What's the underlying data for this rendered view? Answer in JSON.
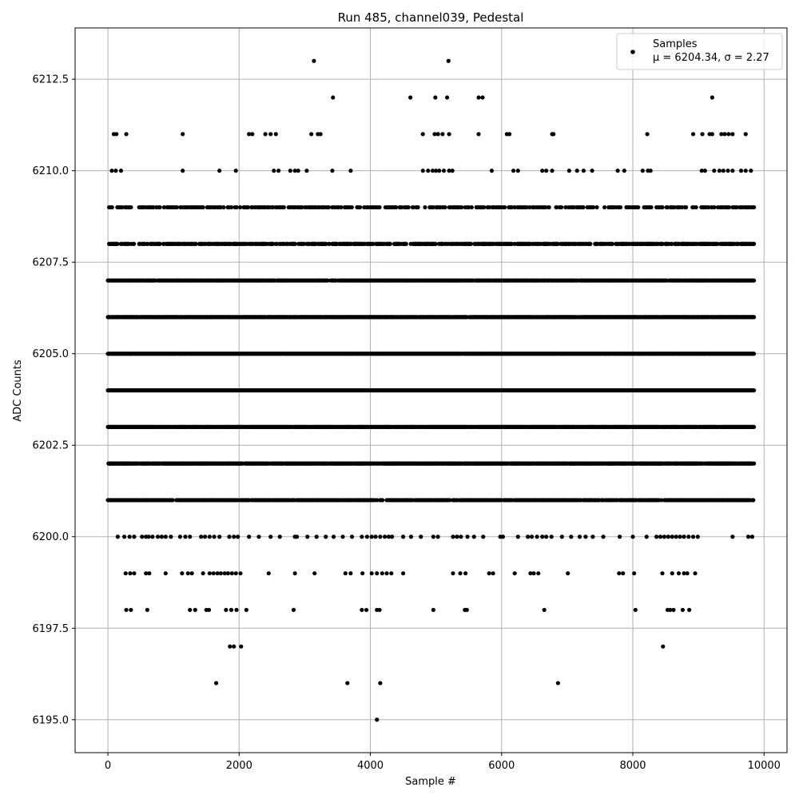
{
  "chart_data": {
    "type": "scatter",
    "title": "Run 485, channel039, Pedestal",
    "xlabel": "Sample #",
    "ylabel": "ADC Counts",
    "xlim": [
      -500,
      10350
    ],
    "ylim": [
      6194.1,
      6213.9
    ],
    "xticks": [
      0,
      2000,
      4000,
      6000,
      8000,
      10000
    ],
    "xtick_labels": [
      "0",
      "2000",
      "4000",
      "6000",
      "8000",
      "10000"
    ],
    "yticks": [
      6195.0,
      6197.5,
      6200.0,
      6202.5,
      6205.0,
      6207.5,
      6210.0,
      6212.5
    ],
    "ytick_labels": [
      "6195.0",
      "6197.5",
      "6200.0",
      "6202.5",
      "6205.0",
      "6207.5",
      "6210.0",
      "6212.5"
    ],
    "grid": true,
    "legend_position": "top-right",
    "marker_color": "#000000",
    "grid_color": "#b0b0b0",
    "series": [
      {
        "name": "Samples",
        "stat_label": "μ = 6204.34, σ = 2.27",
        "n_samples": 9850,
        "levels": [
          {
            "y": 6201,
            "x": [
              0,
              9850
            ],
            "density": 0.7
          },
          {
            "y": 6202,
            "x": [
              0,
              9850
            ],
            "density": 0.85
          },
          {
            "y": 6203,
            "x": [
              0,
              9850
            ],
            "density": 0.97
          },
          {
            "y": 6204,
            "x": [
              0,
              9850
            ],
            "density": 1.0
          },
          {
            "y": 6205,
            "x": [
              0,
              9850
            ],
            "density": 0.98
          },
          {
            "y": 6206,
            "x": [
              0,
              9850
            ],
            "density": 0.9
          },
          {
            "y": 6207,
            "x": [
              0,
              9850
            ],
            "density": 0.8
          },
          {
            "y": 6208,
            "x": [
              0,
              9850
            ],
            "density": 0.55
          },
          {
            "y": 6209,
            "x": [
              0,
              9850
            ],
            "density": 0.35
          }
        ],
        "points": [
          [
            60,
            6210
          ],
          [
            120,
            6210
          ],
          [
            200,
            6210
          ],
          [
            1140,
            6210
          ],
          [
            1700,
            6210
          ],
          [
            1950,
            6210
          ],
          [
            2530,
            6210
          ],
          [
            2600,
            6210
          ],
          [
            2780,
            6210
          ],
          [
            2850,
            6210
          ],
          [
            2900,
            6210
          ],
          [
            3030,
            6210
          ],
          [
            3420,
            6210
          ],
          [
            3700,
            6210
          ],
          [
            4800,
            6210
          ],
          [
            4880,
            6210
          ],
          [
            4950,
            6210
          ],
          [
            5000,
            6210
          ],
          [
            5050,
            6210
          ],
          [
            5120,
            6210
          ],
          [
            5200,
            6210
          ],
          [
            5250,
            6210
          ],
          [
            5850,
            6210
          ],
          [
            6180,
            6210
          ],
          [
            6250,
            6210
          ],
          [
            6620,
            6210
          ],
          [
            6680,
            6210
          ],
          [
            6770,
            6210
          ],
          [
            7030,
            6210
          ],
          [
            7150,
            6210
          ],
          [
            7250,
            6210
          ],
          [
            7380,
            6210
          ],
          [
            7770,
            6210
          ],
          [
            7870,
            6210
          ],
          [
            8150,
            6210
          ],
          [
            8230,
            6210
          ],
          [
            8270,
            6210
          ],
          [
            9050,
            6210
          ],
          [
            9100,
            6210
          ],
          [
            9240,
            6210
          ],
          [
            9320,
            6210
          ],
          [
            9380,
            6210
          ],
          [
            9450,
            6210
          ],
          [
            9520,
            6210
          ],
          [
            9650,
            6210
          ],
          [
            9720,
            6210
          ],
          [
            9800,
            6210
          ],
          [
            90,
            6211
          ],
          [
            130,
            6211
          ],
          [
            280,
            6211
          ],
          [
            1140,
            6211
          ],
          [
            2150,
            6211
          ],
          [
            2200,
            6211
          ],
          [
            2400,
            6211
          ],
          [
            2480,
            6211
          ],
          [
            2560,
            6211
          ],
          [
            3100,
            6211
          ],
          [
            3200,
            6211
          ],
          [
            3240,
            6211
          ],
          [
            4800,
            6211
          ],
          [
            4980,
            6211
          ],
          [
            5030,
            6211
          ],
          [
            5100,
            6211
          ],
          [
            5200,
            6211
          ],
          [
            5650,
            6211
          ],
          [
            6080,
            6211
          ],
          [
            6120,
            6211
          ],
          [
            6770,
            6211
          ],
          [
            6790,
            6211
          ],
          [
            8220,
            6211
          ],
          [
            8920,
            6211
          ],
          [
            9060,
            6211
          ],
          [
            9170,
            6211
          ],
          [
            9210,
            6211
          ],
          [
            9350,
            6211
          ],
          [
            9400,
            6211
          ],
          [
            9460,
            6211
          ],
          [
            9520,
            6211
          ],
          [
            9720,
            6211
          ],
          [
            4610,
            6212
          ],
          [
            4990,
            6212
          ],
          [
            5170,
            6212
          ],
          [
            5650,
            6212
          ],
          [
            5710,
            6212
          ],
          [
            9210,
            6212
          ],
          [
            3430,
            6212
          ],
          [
            3140,
            6213
          ],
          [
            5190,
            6213
          ],
          [
            150,
            6200
          ],
          [
            250,
            6200
          ],
          [
            330,
            6200
          ],
          [
            400,
            6200
          ],
          [
            520,
            6200
          ],
          [
            580,
            6200
          ],
          [
            620,
            6200
          ],
          [
            680,
            6200
          ],
          [
            760,
            6200
          ],
          [
            820,
            6200
          ],
          [
            880,
            6200
          ],
          [
            960,
            6200
          ],
          [
            1100,
            6200
          ],
          [
            1180,
            6200
          ],
          [
            1250,
            6200
          ],
          [
            1420,
            6200
          ],
          [
            1480,
            6200
          ],
          [
            1550,
            6200
          ],
          [
            1620,
            6200
          ],
          [
            1700,
            6200
          ],
          [
            1850,
            6200
          ],
          [
            1920,
            6200
          ],
          [
            1980,
            6200
          ],
          [
            2150,
            6200
          ],
          [
            2300,
            6200
          ],
          [
            2480,
            6200
          ],
          [
            2620,
            6200
          ],
          [
            2850,
            6200
          ],
          [
            2880,
            6200
          ],
          [
            3040,
            6200
          ],
          [
            3180,
            6200
          ],
          [
            3320,
            6200
          ],
          [
            3440,
            6200
          ],
          [
            3580,
            6200
          ],
          [
            3720,
            6200
          ],
          [
            3870,
            6200
          ],
          [
            3950,
            6200
          ],
          [
            4020,
            6200
          ],
          [
            4080,
            6200
          ],
          [
            4150,
            6200
          ],
          [
            4220,
            6200
          ],
          [
            4280,
            6200
          ],
          [
            4330,
            6200
          ],
          [
            4500,
            6200
          ],
          [
            4620,
            6200
          ],
          [
            4770,
            6200
          ],
          [
            4960,
            6200
          ],
          [
            5030,
            6200
          ],
          [
            5260,
            6200
          ],
          [
            5320,
            6200
          ],
          [
            5380,
            6200
          ],
          [
            5480,
            6200
          ],
          [
            5580,
            6200
          ],
          [
            5720,
            6200
          ],
          [
            5980,
            6200
          ],
          [
            6020,
            6200
          ],
          [
            6250,
            6200
          ],
          [
            6400,
            6200
          ],
          [
            6460,
            6200
          ],
          [
            6540,
            6200
          ],
          [
            6620,
            6200
          ],
          [
            6680,
            6200
          ],
          [
            6760,
            6200
          ],
          [
            6920,
            6200
          ],
          [
            7060,
            6200
          ],
          [
            7190,
            6200
          ],
          [
            7280,
            6200
          ],
          [
            7390,
            6200
          ],
          [
            7550,
            6200
          ],
          [
            7800,
            6200
          ],
          [
            8000,
            6200
          ],
          [
            8210,
            6200
          ],
          [
            8360,
            6200
          ],
          [
            8420,
            6200
          ],
          [
            8480,
            6200
          ],
          [
            8540,
            6200
          ],
          [
            8600,
            6200
          ],
          [
            8660,
            6200
          ],
          [
            8720,
            6200
          ],
          [
            8780,
            6200
          ],
          [
            8850,
            6200
          ],
          [
            8920,
            6200
          ],
          [
            8990,
            6200
          ],
          [
            9520,
            6200
          ],
          [
            9760,
            6200
          ],
          [
            9820,
            6200
          ],
          [
            270,
            6199
          ],
          [
            340,
            6199
          ],
          [
            400,
            6199
          ],
          [
            580,
            6199
          ],
          [
            630,
            6199
          ],
          [
            880,
            6199
          ],
          [
            1130,
            6199
          ],
          [
            1220,
            6199
          ],
          [
            1280,
            6199
          ],
          [
            1450,
            6199
          ],
          [
            1550,
            6199
          ],
          [
            1610,
            6199
          ],
          [
            1670,
            6199
          ],
          [
            1720,
            6199
          ],
          [
            1780,
            6199
          ],
          [
            1830,
            6199
          ],
          [
            1890,
            6199
          ],
          [
            1950,
            6199
          ],
          [
            2020,
            6199
          ],
          [
            2450,
            6199
          ],
          [
            2850,
            6199
          ],
          [
            3150,
            6199
          ],
          [
            3620,
            6199
          ],
          [
            3700,
            6199
          ],
          [
            3880,
            6199
          ],
          [
            4020,
            6199
          ],
          [
            4100,
            6199
          ],
          [
            4180,
            6199
          ],
          [
            4250,
            6199
          ],
          [
            4320,
            6199
          ],
          [
            4500,
            6199
          ],
          [
            5260,
            6199
          ],
          [
            5370,
            6199
          ],
          [
            5450,
            6199
          ],
          [
            5810,
            6199
          ],
          [
            5870,
            6199
          ],
          [
            6200,
            6199
          ],
          [
            6440,
            6199
          ],
          [
            6490,
            6199
          ],
          [
            6560,
            6199
          ],
          [
            7010,
            6199
          ],
          [
            7790,
            6199
          ],
          [
            7850,
            6199
          ],
          [
            8020,
            6199
          ],
          [
            8450,
            6199
          ],
          [
            8600,
            6199
          ],
          [
            8700,
            6199
          ],
          [
            8780,
            6199
          ],
          [
            8830,
            6199
          ],
          [
            8950,
            6199
          ],
          [
            280,
            6198
          ],
          [
            350,
            6198
          ],
          [
            600,
            6198
          ],
          [
            1250,
            6198
          ],
          [
            1330,
            6198
          ],
          [
            1500,
            6198
          ],
          [
            1540,
            6198
          ],
          [
            1800,
            6198
          ],
          [
            1880,
            6198
          ],
          [
            1960,
            6198
          ],
          [
            2110,
            6198
          ],
          [
            2830,
            6198
          ],
          [
            3870,
            6198
          ],
          [
            3940,
            6198
          ],
          [
            4100,
            6198
          ],
          [
            4140,
            6198
          ],
          [
            4960,
            6198
          ],
          [
            5440,
            6198
          ],
          [
            5470,
            6198
          ],
          [
            6650,
            6198
          ],
          [
            8040,
            6198
          ],
          [
            8530,
            6198
          ],
          [
            8570,
            6198
          ],
          [
            8620,
            6198
          ],
          [
            8760,
            6198
          ],
          [
            8860,
            6198
          ],
          [
            1860,
            6197
          ],
          [
            1920,
            6197
          ],
          [
            2030,
            6197
          ],
          [
            8460,
            6197
          ],
          [
            1650,
            6196
          ],
          [
            3650,
            6196
          ],
          [
            4150,
            6196
          ],
          [
            6860,
            6196
          ],
          [
            4100,
            6195
          ]
        ]
      }
    ]
  }
}
